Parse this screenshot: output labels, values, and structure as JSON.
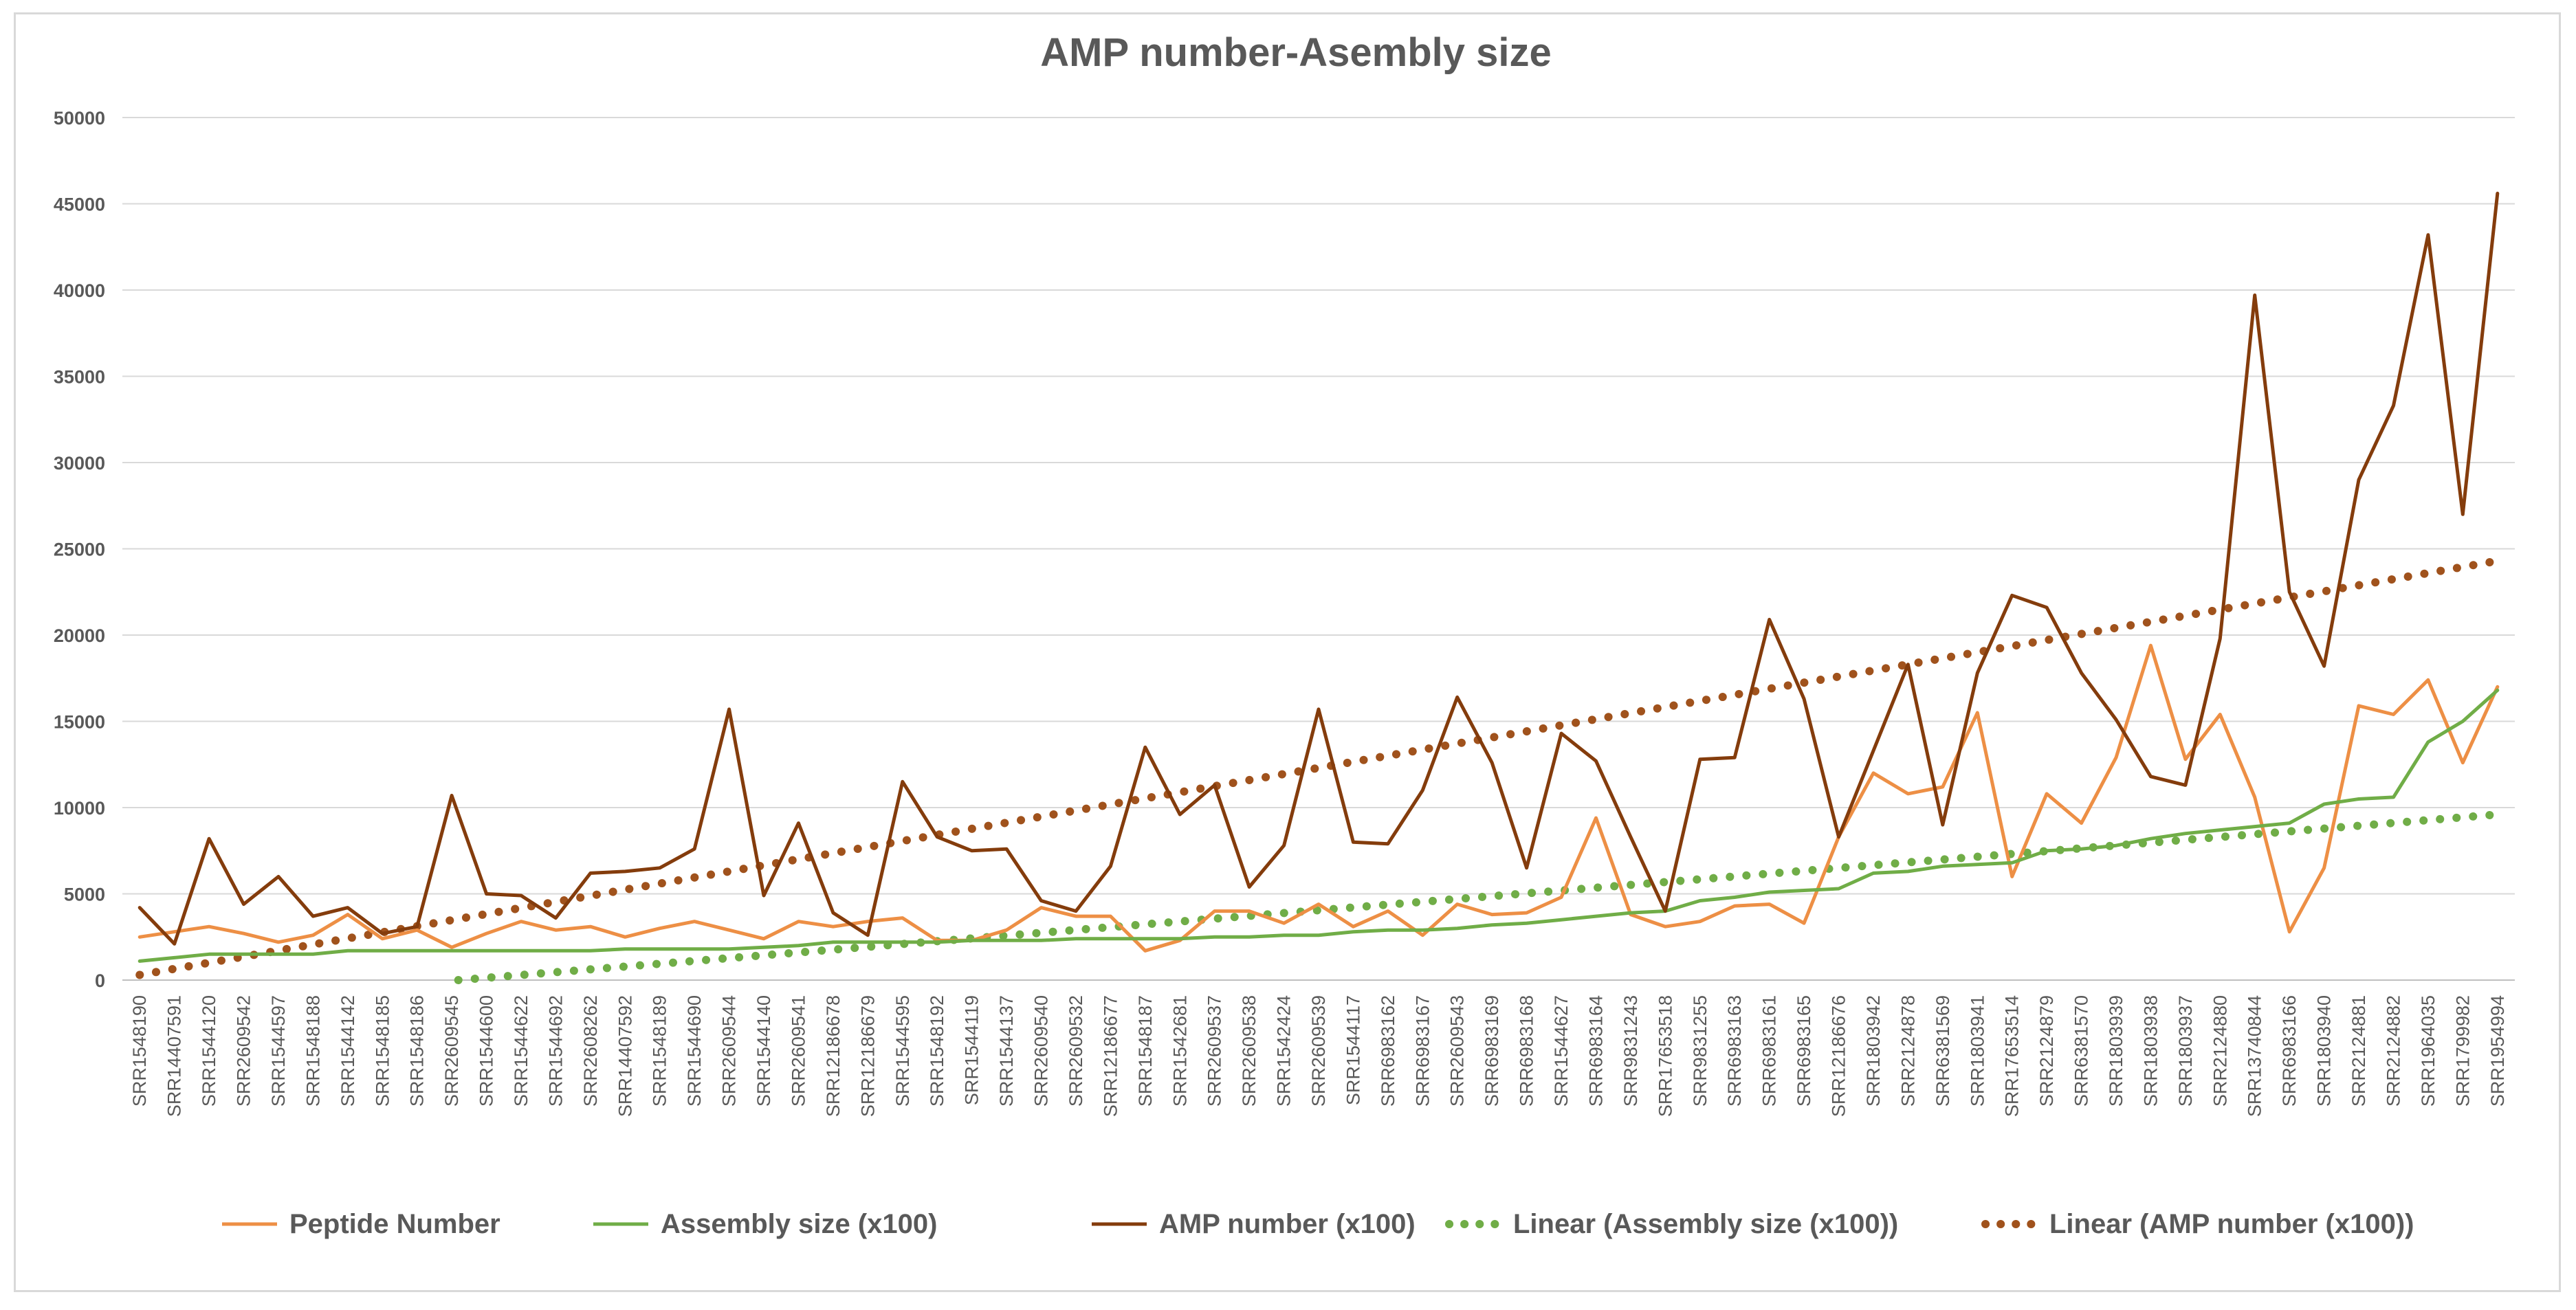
{
  "chart_data": {
    "type": "line",
    "title": "AMP number-Asembly size",
    "xlabel": "",
    "ylabel": "",
    "ylim": [
      0,
      50000
    ],
    "yticks": [
      0,
      5000,
      10000,
      15000,
      20000,
      25000,
      30000,
      35000,
      40000,
      45000,
      50000
    ],
    "ytick_labels": [
      "0",
      "5000",
      "10000",
      "15000",
      "20000",
      "25000",
      "30000",
      "35000",
      "40000",
      "45000",
      "50000"
    ],
    "grid": true,
    "legend_position": "bottom",
    "categories": [
      "SRR1548190",
      "SRR14407591",
      "SRR1544120",
      "SRR2609542",
      "SRR1544597",
      "SRR1548188",
      "SRR1544142",
      "SRR1548185",
      "SRR1548186",
      "SRR2609545",
      "SRR1544600",
      "SRR1544622",
      "SRR1544692",
      "SRR2608262",
      "SRR14407592",
      "SRR1548189",
      "SRR1544690",
      "SRR2609544",
      "SRR1544140",
      "SRR2609541",
      "SRR12186678",
      "SRR12186679",
      "SRR1544595",
      "SRR1548192",
      "SRR1544119",
      "SRR1544137",
      "SRR2609540",
      "SRR2609532",
      "SRR12186677",
      "SRR1548187",
      "SRR1542681",
      "SRR2609537",
      "SRR2609538",
      "SRR1542424",
      "SRR2609539",
      "SRR1544117",
      "SRR6983162",
      "SRR6983167",
      "SRR2609543",
      "SRR6983169",
      "SRR6983168",
      "SRR1544627",
      "SRR6983164",
      "SRR9831243",
      "SRR17653518",
      "SRR9831255",
      "SRR6983163",
      "SRR6983161",
      "SRR6983165",
      "SRR12186676",
      "SRR1803942",
      "SRR2124878",
      "SRR6381569",
      "SRR1803941",
      "SRR17653514",
      "SRR2124879",
      "SRR6381570",
      "SRR1803939",
      "SRR1803938",
      "SRR1803937",
      "SRR2124880",
      "SRR13740844",
      "SRR6983166",
      "SRR1803940",
      "SRR2124881",
      "SRR2124882",
      "SRR1964035",
      "SRR1799982",
      "SRR1954994"
    ],
    "series": [
      {
        "name": "Peptide Number",
        "style": "solid",
        "color": "#ED8F45",
        "values": [
          2500,
          2800,
          3100,
          2700,
          2200,
          2600,
          3800,
          2400,
          2900,
          1900,
          2700,
          3400,
          2900,
          3100,
          2500,
          3000,
          3400,
          2900,
          2400,
          3400,
          3100,
          3400,
          3600,
          2300,
          2300,
          2900,
          4200,
          3700,
          3700,
          1700,
          2300,
          4000,
          4000,
          3300,
          4400,
          3100,
          4000,
          2600,
          4400,
          3800,
          3900,
          4800,
          9400,
          3800,
          3100,
          3400,
          4300,
          4400,
          3300,
          8300,
          12000,
          10800,
          11200,
          15500,
          6000,
          10800,
          9100,
          12900,
          19400,
          12800,
          15400,
          10600,
          2800,
          6500,
          15900,
          15400,
          17400,
          12600,
          17000
        ]
      },
      {
        "name": "Assembly size (x100)",
        "style": "solid",
        "color": "#70AD47",
        "values": [
          1100,
          1300,
          1500,
          1500,
          1500,
          1500,
          1700,
          1700,
          1700,
          1700,
          1700,
          1700,
          1700,
          1700,
          1800,
          1800,
          1800,
          1800,
          1900,
          2000,
          2200,
          2200,
          2200,
          2200,
          2300,
          2300,
          2300,
          2400,
          2400,
          2400,
          2400,
          2500,
          2500,
          2600,
          2600,
          2800,
          2900,
          2900,
          3000,
          3200,
          3300,
          3500,
          3700,
          3900,
          4000,
          4600,
          4800,
          5100,
          5200,
          5300,
          6200,
          6300,
          6600,
          6700,
          6800,
          7500,
          7600,
          7800,
          8200,
          8500,
          8700,
          8900,
          9100,
          10200,
          10500,
          10600,
          13800,
          15000,
          16800
        ]
      },
      {
        "name": "AMP number (x100)",
        "style": "solid",
        "color": "#843C0C",
        "values": [
          4200,
          2100,
          8200,
          4400,
          6000,
          3700,
          4200,
          2700,
          3100,
          10700,
          5000,
          4900,
          3600,
          6200,
          6300,
          6500,
          7600,
          15700,
          4900,
          9100,
          3900,
          2600,
          11500,
          8300,
          7500,
          7600,
          4600,
          4000,
          6600,
          13500,
          9600,
          11300,
          5400,
          7800,
          15700,
          8000,
          7900,
          11000,
          16400,
          12600,
          6500,
          14300,
          12700,
          8300,
          4000,
          12800,
          12900,
          20900,
          16300,
          8300,
          13300,
          18300,
          9000,
          17800,
          22300,
          21600,
          17800,
          15100,
          11800,
          11300,
          19800,
          39700,
          22500,
          18200,
          29000,
          33300,
          43200,
          27000,
          45600
        ]
      },
      {
        "name": "Linear (Assembly size (x100))",
        "style": "dotted",
        "color": "#70AD47",
        "trend": [
          [
            0,
            -1500
          ],
          [
            68,
            9600
          ]
        ]
      },
      {
        "name": "Linear (AMP number (x100))",
        "style": "dotted",
        "color": "#A0521C",
        "trend": [
          [
            0,
            300
          ],
          [
            68,
            24300
          ]
        ]
      }
    ]
  },
  "colors": {
    "title": "#595959",
    "axis_text": "#595959",
    "gridline": "#d9d9d9",
    "axis_line": "#bfbfbf"
  }
}
